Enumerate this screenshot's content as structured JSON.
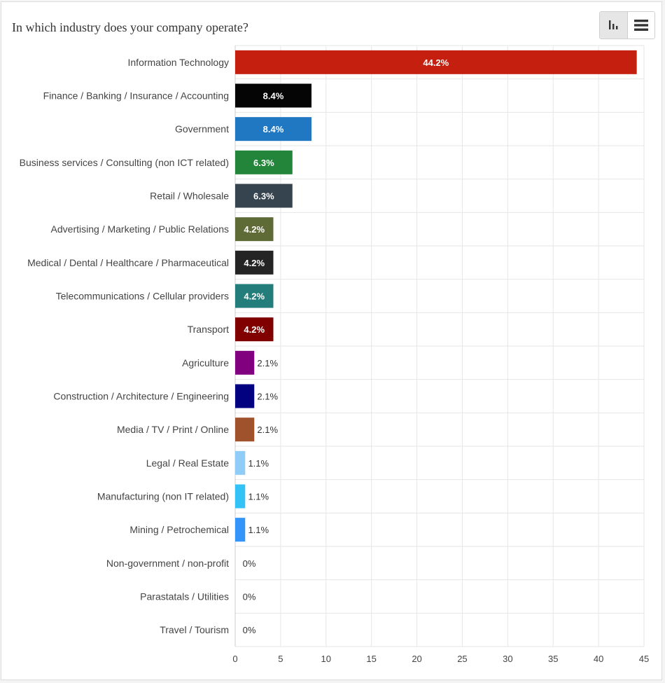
{
  "title": "In which industry does your company operate?",
  "view_toggle": {
    "chart_icon": "bar-chart-icon",
    "table_icon": "list-icon",
    "active": "chart"
  },
  "chart_data": {
    "type": "bar",
    "orientation": "horizontal",
    "title": "In which industry does your company operate?",
    "categories": [
      "Information Technology",
      "Finance / Banking / Insurance / Accounting",
      "Government",
      "Business services / Consulting (non ICT related)",
      "Retail / Wholesale",
      "Advertising / Marketing / Public Relations",
      "Medical / Dental / Healthcare / Pharmaceutical",
      "Telecommunications / Cellular providers",
      "Transport",
      "Agriculture",
      "Construction / Architecture / Engineering",
      "Media / TV / Print / Online",
      "Legal / Real Estate",
      "Manufacturing (non IT related)",
      "Mining / Petrochemical",
      "Non-government / non-profit",
      "Parastatals / Utilities",
      "Travel / Tourism"
    ],
    "values": [
      44.2,
      8.4,
      8.4,
      6.3,
      6.3,
      4.2,
      4.2,
      4.2,
      4.2,
      2.1,
      2.1,
      2.1,
      1.1,
      1.1,
      1.1,
      0,
      0,
      0
    ],
    "value_labels": [
      "44.2%",
      "8.4%",
      "8.4%",
      "6.3%",
      "6.3%",
      "4.2%",
      "4.2%",
      "4.2%",
      "4.2%",
      "2.1%",
      "2.1%",
      "2.1%",
      "1.1%",
      "1.1%",
      "1.1%",
      "0%",
      "0%",
      "0%"
    ],
    "colors": [
      "#c41f0f",
      "#050505",
      "#2077c2",
      "#23853a",
      "#36444f",
      "#5e6b36",
      "#242424",
      "#237d7b",
      "#800000",
      "#800080",
      "#020280",
      "#a0522d",
      "#8fccf7",
      "#33c2f5",
      "#3394fa",
      "#cccccc",
      "#cccccc",
      "#cccccc"
    ],
    "xlim": [
      0,
      45
    ],
    "x_ticks": [
      0,
      5,
      10,
      15,
      20,
      25,
      30,
      35,
      40,
      45
    ],
    "grid": true,
    "legend": "none"
  }
}
